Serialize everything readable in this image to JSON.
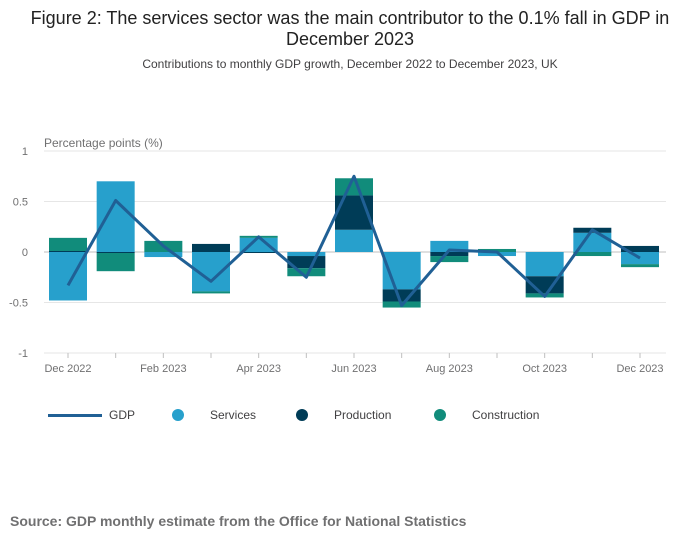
{
  "header": {
    "title": "Figure 2: The services sector was the main contributor to the 0.1% fall in GDP in December 2023",
    "subtitle": "Contributions to monthly GDP growth, December 2022 to December 2023, UK"
  },
  "footer": {
    "source": "Source: GDP monthly estimate from the Office for National Statistics"
  },
  "chart_data": {
    "type": "bar",
    "stacked": true,
    "title": "Figure 2: The services sector was the main contributor to the 0.1% fall in GDP in December 2023",
    "subtitle": "Contributions to monthly GDP growth, December 2022 to December 2023, UK",
    "ylabel": "Percentage points (%)",
    "xlabel": "",
    "ylim": [
      -1,
      1
    ],
    "yticks": [
      1,
      0.5,
      0,
      -0.5,
      -1
    ],
    "ytick_labels": [
      "1",
      "0.5",
      "0",
      "-0.5",
      "-1"
    ],
    "grid": true,
    "legend_position": "bottom",
    "categories": [
      "Dec 2022",
      "Jan 2023",
      "Feb 2023",
      "Mar 2023",
      "Apr 2023",
      "May 2023",
      "Jun 2023",
      "Jul 2023",
      "Aug 2023",
      "Sep 2023",
      "Oct 2023",
      "Nov 2023",
      "Dec 2023"
    ],
    "tick_labels": [
      "Dec 2022",
      "",
      "Feb 2023",
      "",
      "Apr 2023",
      "",
      "Jun 2023",
      "",
      "Aug 2023",
      "",
      "Oct 2023",
      "",
      "Dec 2023"
    ],
    "series": [
      {
        "name": "Services",
        "kind": "bar",
        "color": "#27a0cc",
        "values": [
          -0.48,
          0.7,
          -0.05,
          -0.39,
          0.14,
          -0.04,
          0.22,
          -0.37,
          0.11,
          -0.04,
          -0.24,
          0.19,
          -0.12
        ]
      },
      {
        "name": "Production",
        "kind": "bar",
        "color": "#003c57",
        "values": [
          0.01,
          -0.01,
          0.0,
          0.08,
          -0.01,
          -0.12,
          0.34,
          -0.12,
          -0.04,
          0.0,
          -0.17,
          0.05,
          0.06
        ]
      },
      {
        "name": "Construction",
        "kind": "bar",
        "color": "#118c7b",
        "values": [
          0.13,
          -0.18,
          0.11,
          -0.02,
          0.02,
          -0.08,
          0.17,
          -0.06,
          -0.06,
          0.03,
          -0.04,
          -0.04,
          -0.03
        ]
      },
      {
        "name": "GDP",
        "kind": "line",
        "color": "#206095",
        "values": [
          -0.33,
          0.51,
          0.06,
          -0.29,
          0.15,
          -0.25,
          0.75,
          -0.53,
          0.02,
          0.0,
          -0.44,
          0.22,
          -0.06
        ]
      }
    ]
  }
}
